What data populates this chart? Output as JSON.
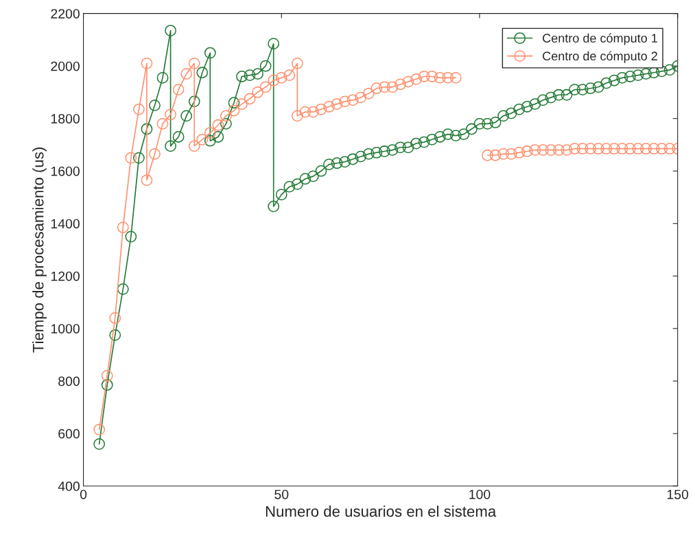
{
  "chart_data": {
    "type": "line",
    "xlabel": "Numero de usuarios en el sistema",
    "ylabel": "Tiempo de procesamiento (us)",
    "xlim": [
      0,
      150
    ],
    "xticks": [
      0,
      50,
      100,
      150
    ],
    "ylim": [
      400,
      2200
    ],
    "yticks": [
      400,
      600,
      800,
      1000,
      1200,
      1400,
      1600,
      1800,
      2000,
      2200
    ],
    "grid": false,
    "legend": "top right",
    "marker": "circle",
    "line_style": "solid",
    "series": [
      {
        "name": "Centro de cómputo 1",
        "color": "#237a36",
        "x": [
          4,
          6,
          8,
          10,
          12,
          14,
          16,
          18,
          20,
          22,
          22,
          24,
          26,
          28,
          30,
          32,
          32,
          34,
          36,
          38,
          40,
          42,
          44,
          46,
          48,
          48,
          50,
          52,
          54,
          56,
          58,
          60,
          62,
          64,
          66,
          68,
          70,
          72,
          74,
          76,
          78,
          80,
          82,
          84,
          86,
          88,
          90,
          92,
          94,
          96,
          98,
          100,
          102,
          104,
          106,
          108,
          110,
          112,
          114,
          116,
          118,
          120,
          122,
          124,
          126,
          128,
          130,
          132,
          134,
          136,
          138,
          140,
          142,
          144,
          146,
          148,
          150
        ],
        "values": [
          560,
          785,
          975,
          1150,
          1350,
          1650,
          1760,
          1850,
          1955,
          2135,
          1695,
          1730,
          1810,
          1865,
          1975,
          2050,
          1715,
          1730,
          1780,
          1860,
          1960,
          1965,
          1970,
          2000,
          2085,
          1465,
          1510,
          1540,
          1550,
          1570,
          1580,
          1600,
          1625,
          1630,
          1635,
          1645,
          1655,
          1665,
          1670,
          1675,
          1680,
          1690,
          1690,
          1705,
          1710,
          1720,
          1730,
          1740,
          1735,
          1740,
          1760,
          1780,
          1780,
          1785,
          1810,
          1820,
          1835,
          1845,
          1855,
          1870,
          1880,
          1890,
          1890,
          1910,
          1910,
          1915,
          1920,
          1935,
          1945,
          1955,
          1960,
          1965,
          1970,
          1975,
          1980,
          1985,
          2000
        ]
      },
      {
        "name": "Centro de cómputo 2",
        "color": "#ff906e",
        "x": [
          4,
          6,
          8,
          10,
          12,
          14,
          16,
          16,
          18,
          20,
          22,
          24,
          26,
          28,
          28,
          30,
          32,
          34,
          36,
          38,
          40,
          42,
          44,
          46,
          48,
          50,
          52,
          54,
          54,
          56,
          58,
          60,
          62,
          64,
          66,
          68,
          70,
          72,
          74,
          76,
          78,
          80,
          82,
          84,
          86,
          88,
          90,
          92,
          94,
          96,
          98,
          100,
          102,
          104,
          106,
          108,
          110,
          112,
          114,
          116,
          118,
          120,
          122,
          124,
          126,
          128,
          130,
          132,
          134,
          136,
          138,
          140,
          142,
          144,
          146,
          148,
          150
        ],
        "values": [
          615,
          820,
          1040,
          1385,
          1650,
          1835,
          2010,
          1565,
          1665,
          1780,
          1815,
          1910,
          1970,
          2010,
          1695,
          1720,
          1745,
          1775,
          1810,
          1830,
          1855,
          1875,
          1900,
          1920,
          1945,
          1955,
          1965,
          2010,
          1810,
          1825,
          1825,
          1835,
          1845,
          1855,
          1865,
          1870,
          1880,
          1895,
          1915,
          1920,
          1920,
          1930,
          1940,
          1950,
          1960,
          1960,
          1955,
          1955,
          1955,
          null,
          null,
          null,
          1660,
          1660,
          1665,
          1665,
          1670,
          1675,
          1680,
          1680,
          1680,
          1680,
          1680,
          1685,
          1685,
          1685,
          1685,
          1685,
          1685,
          1685,
          1685,
          1685,
          1685,
          1685,
          1685,
          1685,
          1685
        ]
      }
    ]
  }
}
